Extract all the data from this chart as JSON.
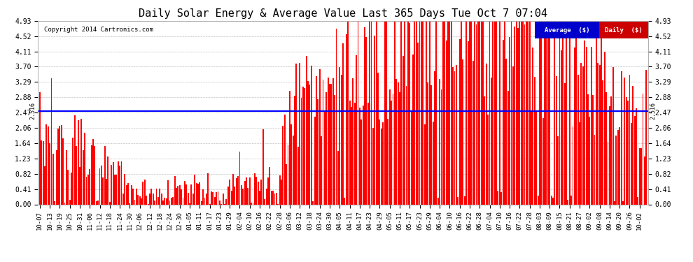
{
  "title": "Daily Solar Energy & Average Value Last 365 Days Tue Oct 7 07:04",
  "copyright": "Copyright 2014 Cartronics.com",
  "average_value": 2.516,
  "avg_label": "2.516",
  "bar_color": "#FF0000",
  "avg_line_color": "#0000FF",
  "background_color": "#FFFFFF",
  "plot_bg_color": "#FFFFFF",
  "ylim": [
    0.0,
    4.93
  ],
  "yticks": [
    0.0,
    0.41,
    0.82,
    1.23,
    1.64,
    2.06,
    2.47,
    2.88,
    3.29,
    3.7,
    4.11,
    4.52,
    4.93
  ],
  "legend_avg_bg": "#0000CC",
  "legend_daily_bg": "#CC0000",
  "legend_avg_text": "Average  ($)",
  "legend_daily_text": "Daily  ($)",
  "x_labels": [
    "10-07",
    "10-13",
    "10-19",
    "10-25",
    "10-31",
    "11-06",
    "11-12",
    "11-18",
    "11-24",
    "11-30",
    "12-06",
    "12-12",
    "12-18",
    "12-24",
    "12-30",
    "01-05",
    "01-11",
    "01-17",
    "01-23",
    "01-29",
    "02-04",
    "02-10",
    "02-16",
    "02-22",
    "02-28",
    "03-06",
    "03-12",
    "03-18",
    "03-24",
    "03-30",
    "04-05",
    "04-11",
    "04-17",
    "04-23",
    "04-29",
    "05-05",
    "05-11",
    "05-17",
    "05-23",
    "05-29",
    "06-04",
    "06-10",
    "06-16",
    "06-22",
    "06-28",
    "07-04",
    "07-10",
    "07-16",
    "07-22",
    "07-28",
    "08-03",
    "08-09",
    "08-15",
    "08-21",
    "08-27",
    "09-02",
    "09-08",
    "09-14",
    "09-20",
    "09-26",
    "10-02"
  ],
  "num_bars": 365
}
